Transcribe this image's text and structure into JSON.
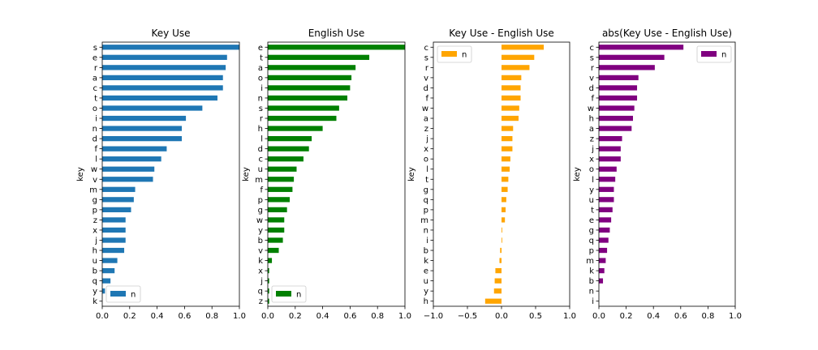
{
  "chart_data": [
    {
      "type": "bar",
      "orientation": "horizontal",
      "title": "Key Use",
      "ylabel": "key",
      "xlabel": "",
      "xlim": [
        0,
        1
      ],
      "xticks": [
        "0.0",
        "0.2",
        "0.4",
        "0.6",
        "0.8",
        "1.0"
      ],
      "color": "#1f77b4",
      "legend": {
        "entries": [
          "n"
        ],
        "placement": "lower-left"
      },
      "categories": [
        "s",
        "e",
        "r",
        "a",
        "c",
        "t",
        "o",
        "i",
        "n",
        "d",
        "f",
        "l",
        "w",
        "v",
        "m",
        "g",
        "p",
        "z",
        "x",
        "j",
        "h",
        "u",
        "b",
        "q",
        "y",
        "k"
      ],
      "series": [
        {
          "name": "n",
          "values": [
            1.0,
            0.91,
            0.9,
            0.88,
            0.88,
            0.84,
            0.73,
            0.61,
            0.58,
            0.58,
            0.47,
            0.43,
            0.38,
            0.37,
            0.24,
            0.23,
            0.21,
            0.17,
            0.17,
            0.17,
            0.16,
            0.11,
            0.09,
            0.06,
            0.02,
            0.0
          ]
        }
      ]
    },
    {
      "type": "bar",
      "orientation": "horizontal",
      "title": "English Use",
      "ylabel": "key",
      "xlabel": "",
      "xlim": [
        0,
        1
      ],
      "xticks": [
        "0.0",
        "0.2",
        "0.4",
        "0.6",
        "0.8",
        "1.0"
      ],
      "color": "#008000",
      "legend": {
        "entries": [
          "n"
        ],
        "placement": "lower-left"
      },
      "categories": [
        "e",
        "t",
        "a",
        "o",
        "i",
        "n",
        "s",
        "r",
        "h",
        "l",
        "d",
        "c",
        "u",
        "m",
        "f",
        "p",
        "g",
        "w",
        "y",
        "b",
        "v",
        "k",
        "x",
        "j",
        "q",
        "z"
      ],
      "series": [
        {
          "name": "n",
          "values": [
            1.0,
            0.74,
            0.64,
            0.61,
            0.6,
            0.58,
            0.52,
            0.5,
            0.4,
            0.32,
            0.3,
            0.26,
            0.21,
            0.19,
            0.18,
            0.16,
            0.14,
            0.12,
            0.12,
            0.11,
            0.08,
            0.03,
            0.01,
            0.01,
            0.01,
            0.01
          ]
        }
      ]
    },
    {
      "type": "bar",
      "orientation": "horizontal",
      "title": "Key Use - English Use",
      "ylabel": "key",
      "xlabel": "",
      "xlim": [
        -1,
        1
      ],
      "xticks": [
        "−1.0",
        "−0.5",
        "0.0",
        "0.5",
        "1.0"
      ],
      "color": "#ffa500",
      "legend": {
        "entries": [
          "n"
        ],
        "placement": "upper-left"
      },
      "categories": [
        "c",
        "s",
        "r",
        "v",
        "d",
        "f",
        "w",
        "a",
        "z",
        "j",
        "x",
        "o",
        "l",
        "t",
        "g",
        "q",
        "p",
        "m",
        "n",
        "i",
        "b",
        "k",
        "e",
        "u",
        "y",
        "h"
      ],
      "series": [
        {
          "name": "n",
          "values": [
            0.62,
            0.48,
            0.41,
            0.29,
            0.28,
            0.28,
            0.26,
            0.25,
            0.17,
            0.16,
            0.16,
            0.13,
            0.12,
            0.1,
            0.09,
            0.07,
            0.06,
            0.05,
            0.01,
            0.01,
            -0.02,
            -0.03,
            -0.09,
            -0.1,
            -0.11,
            -0.24
          ]
        }
      ]
    },
    {
      "type": "bar",
      "orientation": "horizontal",
      "title": "abs(Key Use - English Use)",
      "ylabel": "key",
      "xlabel": "",
      "xlim": [
        0,
        1
      ],
      "xticks": [
        "0.0",
        "0.2",
        "0.4",
        "0.6",
        "0.8",
        "1.0"
      ],
      "color": "#800080",
      "legend": {
        "entries": [
          "n"
        ],
        "placement": "upper-right"
      },
      "categories": [
        "c",
        "s",
        "r",
        "v",
        "d",
        "f",
        "w",
        "h",
        "a",
        "z",
        "j",
        "x",
        "o",
        "l",
        "y",
        "u",
        "t",
        "e",
        "g",
        "q",
        "p",
        "m",
        "k",
        "b",
        "n",
        "i"
      ],
      "series": [
        {
          "name": "n",
          "values": [
            0.62,
            0.48,
            0.41,
            0.29,
            0.28,
            0.28,
            0.26,
            0.25,
            0.24,
            0.17,
            0.16,
            0.16,
            0.13,
            0.12,
            0.11,
            0.11,
            0.1,
            0.09,
            0.08,
            0.07,
            0.06,
            0.05,
            0.04,
            0.03,
            0.0,
            0.0
          ]
        }
      ]
    }
  ]
}
